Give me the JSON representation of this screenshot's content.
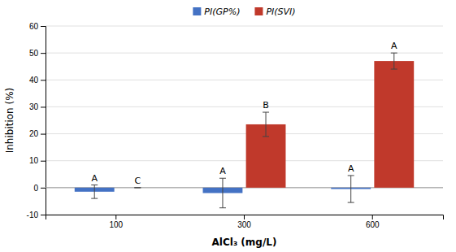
{
  "chart_data": {
    "type": "bar",
    "xlabel": "AlCl₃ (mg/L)",
    "ylabel": "Inhibition (%)",
    "categories": [
      "100",
      "300",
      "600"
    ],
    "series": [
      {
        "name": "PI(GP%)",
        "color": "#4472C4",
        "values": [
          -1.5,
          -2.0,
          -0.5
        ],
        "errors": [
          2.5,
          5.5,
          5.0
        ],
        "annotations": [
          "A",
          "A",
          "A"
        ]
      },
      {
        "name": "PI(SVI)",
        "color": "#C0392B",
        "values": [
          0.0,
          23.5,
          47.0
        ],
        "errors": [
          0.0,
          4.5,
          3.0
        ],
        "annotations": [
          "C",
          "B",
          "A"
        ]
      }
    ],
    "ylim": [
      -10,
      60
    ],
    "yticks": [
      -10,
      0,
      10,
      20,
      30,
      40,
      50,
      60
    ],
    "grid": true,
    "legend": "top"
  }
}
